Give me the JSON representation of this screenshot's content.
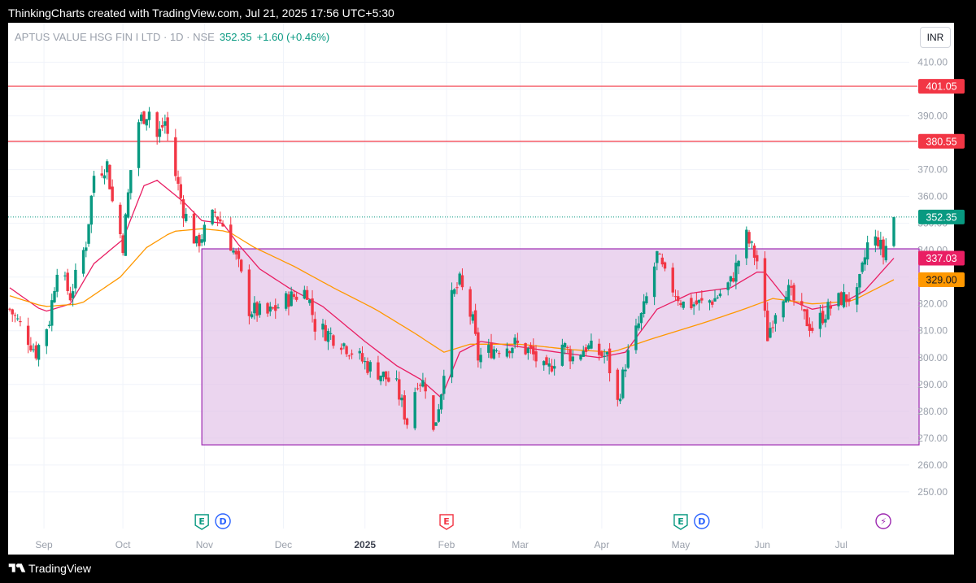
{
  "header": {
    "credit": "ThinkingCharts created with TradingView.com, Jul 21, 2025 17:56 UTC+5:30"
  },
  "symbol": {
    "name": "APTUS VALUE HSG FIN I LTD · 1D · NSE",
    "price": "352.35",
    "change": "+1.60 (+0.46%)"
  },
  "currency": "INR",
  "footer": {
    "brand": "TradingView",
    "logo_icon": "tradingview-logo-icon"
  },
  "colors": {
    "up": "#089981",
    "down": "#f23645",
    "ema_fast": "#e91e63",
    "ema_slow": "#ff9800",
    "hline": "#f23645",
    "rect_fill": "#e1bee7",
    "rect_border": "#9c27b0",
    "price_line": "#089981"
  },
  "chart_data": {
    "type": "candlestick",
    "title": "",
    "xlabel": "",
    "ylabel": "",
    "ylim": [
      243,
      415
    ],
    "y_ticks": [
      250,
      260,
      270,
      280,
      290,
      300,
      310,
      320,
      330,
      340,
      350,
      360,
      370,
      380,
      390,
      400,
      410
    ],
    "x_ticks": [
      "Sep",
      "Oct",
      "Nov",
      "Dec",
      "2025",
      "Feb",
      "Mar",
      "Apr",
      "May",
      "Jun",
      "Jul"
    ],
    "x_tick_dates": [
      "2024-09-01",
      "2024-10-01",
      "2024-11-01",
      "2024-12-01",
      "2025-01-01",
      "2025-02-01",
      "2025-03-01",
      "2025-04-01",
      "2025-05-01",
      "2025-06-01",
      "2025-07-01"
    ],
    "date_range": [
      "2024-08-19",
      "2025-07-21"
    ],
    "horizontal_levels": [
      {
        "value": 401.05,
        "label": "401.05"
      },
      {
        "value": 380.55,
        "label": "380.55"
      }
    ],
    "range_box": {
      "from_date": "2024-10-31",
      "to_date": "2025-07-21",
      "top": 340.5,
      "bottom": 267.5
    },
    "last_price": {
      "value": 352.35,
      "label": "352.35"
    },
    "ema_labels": [
      {
        "name": "EMA fast",
        "value": 337.03,
        "label": "337.03"
      },
      {
        "name": "EMA slow",
        "value": 329.0,
        "label": "329.00"
      }
    ],
    "series": [
      {
        "name": "Close",
        "anchors": [
          [
            "2024-08-19",
            318
          ],
          [
            "2024-08-23",
            312
          ],
          [
            "2024-08-29",
            302
          ],
          [
            "2024-09-03",
            314
          ],
          [
            "2024-09-06",
            334
          ],
          [
            "2024-09-11",
            323
          ],
          [
            "2024-09-17",
            343
          ],
          [
            "2024-09-20",
            368
          ],
          [
            "2024-09-25",
            372
          ],
          [
            "2024-09-27",
            358
          ],
          [
            "2024-10-01",
            342
          ],
          [
            "2024-10-04",
            370
          ],
          [
            "2024-10-07",
            388
          ],
          [
            "2024-10-11",
            392
          ],
          [
            "2024-10-14",
            382
          ],
          [
            "2024-10-17",
            388
          ],
          [
            "2024-10-21",
            368
          ],
          [
            "2024-10-24",
            355
          ],
          [
            "2024-10-29",
            342
          ],
          [
            "2024-11-05",
            354
          ],
          [
            "2024-11-09",
            348
          ],
          [
            "2024-11-14",
            334
          ],
          [
            "2024-11-18",
            318
          ],
          [
            "2024-11-25",
            316
          ],
          [
            "2024-12-03",
            322
          ],
          [
            "2024-12-10",
            325
          ],
          [
            "2024-12-13",
            312
          ],
          [
            "2024-12-23",
            306
          ],
          [
            "2025-01-02",
            297
          ],
          [
            "2025-01-07",
            294
          ],
          [
            "2025-01-13",
            289
          ],
          [
            "2025-01-17",
            276
          ],
          [
            "2025-01-21",
            292
          ],
          [
            "2025-01-24",
            290
          ],
          [
            "2025-01-27",
            272
          ],
          [
            "2025-01-30",
            288
          ],
          [
            "2025-02-03",
            322
          ],
          [
            "2025-02-06",
            328
          ],
          [
            "2025-02-11",
            313
          ],
          [
            "2025-02-13",
            300
          ],
          [
            "2025-02-18",
            303
          ],
          [
            "2025-02-21",
            304
          ],
          [
            "2025-02-27",
            305
          ],
          [
            "2025-03-05",
            302
          ],
          [
            "2025-03-11",
            294
          ],
          [
            "2025-03-17",
            305
          ],
          [
            "2025-03-21",
            300
          ],
          [
            "2025-03-26",
            304
          ],
          [
            "2025-04-03",
            300
          ],
          [
            "2025-04-07",
            283
          ],
          [
            "2025-04-10",
            298
          ],
          [
            "2025-04-17",
            318
          ],
          [
            "2025-04-22",
            338
          ],
          [
            "2025-04-25",
            330
          ],
          [
            "2025-05-02",
            320
          ],
          [
            "2025-05-09",
            320
          ],
          [
            "2025-05-14",
            322
          ],
          [
            "2025-05-20",
            328
          ],
          [
            "2025-05-26",
            345
          ],
          [
            "2025-05-30",
            336
          ],
          [
            "2025-06-03",
            308
          ],
          [
            "2025-06-06",
            318
          ],
          [
            "2025-06-10",
            326
          ],
          [
            "2025-06-16",
            316
          ],
          [
            "2025-06-20",
            311
          ],
          [
            "2025-06-26",
            318
          ],
          [
            "2025-07-01",
            322
          ],
          [
            "2025-07-07",
            323
          ],
          [
            "2025-07-11",
            342
          ],
          [
            "2025-07-15",
            344
          ],
          [
            "2025-07-17",
            338
          ],
          [
            "2025-07-21",
            352.35
          ]
        ]
      },
      {
        "name": "EMA fast",
        "anchors": [
          [
            "2024-08-19",
            326
          ],
          [
            "2024-09-01",
            317
          ],
          [
            "2024-09-11",
            320
          ],
          [
            "2024-09-20",
            335
          ],
          [
            "2024-10-01",
            344
          ],
          [
            "2024-10-09",
            364
          ],
          [
            "2024-10-14",
            366
          ],
          [
            "2024-10-24",
            358
          ],
          [
            "2024-10-31",
            351
          ],
          [
            "2024-11-08",
            350
          ],
          [
            "2024-11-14",
            342
          ],
          [
            "2024-11-22",
            333
          ],
          [
            "2024-12-03",
            326
          ],
          [
            "2024-12-16",
            319
          ],
          [
            "2025-01-01",
            306
          ],
          [
            "2025-01-13",
            297
          ],
          [
            "2025-01-22",
            292
          ],
          [
            "2025-01-30",
            285
          ],
          [
            "2025-02-06",
            302
          ],
          [
            "2025-02-14",
            306
          ],
          [
            "2025-03-01",
            304
          ],
          [
            "2025-03-15",
            302
          ],
          [
            "2025-03-31",
            300
          ],
          [
            "2025-04-10",
            302
          ],
          [
            "2025-04-22",
            318
          ],
          [
            "2025-05-05",
            324
          ],
          [
            "2025-05-20",
            326
          ],
          [
            "2025-06-01",
            333
          ],
          [
            "2025-06-10",
            322
          ],
          [
            "2025-06-20",
            318
          ],
          [
            "2025-07-01",
            320
          ],
          [
            "2025-07-10",
            325
          ],
          [
            "2025-07-21",
            337.03
          ]
        ]
      },
      {
        "name": "EMA slow",
        "anchors": [
          [
            "2024-08-19",
            323
          ],
          [
            "2024-09-01",
            319
          ],
          [
            "2024-09-15",
            320
          ],
          [
            "2024-09-30",
            330
          ],
          [
            "2024-10-10",
            341
          ],
          [
            "2024-10-20",
            347
          ],
          [
            "2024-10-31",
            348
          ],
          [
            "2024-11-10",
            347
          ],
          [
            "2024-11-20",
            341
          ],
          [
            "2024-12-05",
            334
          ],
          [
            "2024-12-20",
            326
          ],
          [
            "2025-01-05",
            318
          ],
          [
            "2025-01-20",
            309
          ],
          [
            "2025-01-31",
            302
          ],
          [
            "2025-02-10",
            305
          ],
          [
            "2025-03-01",
            305
          ],
          [
            "2025-03-20",
            303
          ],
          [
            "2025-04-05",
            302
          ],
          [
            "2025-04-20",
            307
          ],
          [
            "2025-05-10",
            313
          ],
          [
            "2025-05-25",
            318
          ],
          [
            "2025-06-05",
            322
          ],
          [
            "2025-06-20",
            320
          ],
          [
            "2025-07-05",
            321
          ],
          [
            "2025-07-21",
            329
          ]
        ]
      }
    ],
    "events": [
      {
        "type": "earnings",
        "date": "2024-10-31",
        "label": "E",
        "color": "#089981"
      },
      {
        "type": "dividend",
        "date": "2024-11-08",
        "label": "D",
        "color": "#2962ff"
      },
      {
        "type": "earnings",
        "date": "2025-02-01",
        "label": "E",
        "color": "#f23645"
      },
      {
        "type": "earnings",
        "date": "2025-05-01",
        "label": "E",
        "color": "#089981"
      },
      {
        "type": "dividend",
        "date": "2025-05-09",
        "label": "D",
        "color": "#2962ff"
      },
      {
        "type": "split",
        "date": "2025-07-17",
        "label": "⚡",
        "color": "#9c27b0"
      }
    ],
    "grid": true,
    "watermark": "ThinkingCharts created with TradingView.com, Jul 21, 2025 17:56 UTC+5:30"
  }
}
